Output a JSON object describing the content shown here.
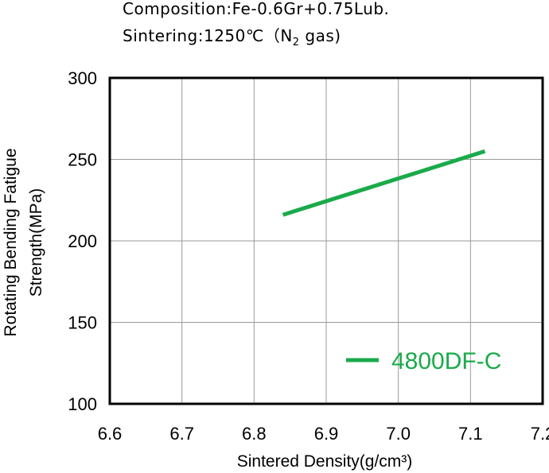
{
  "notes": {
    "composition": "Composition:Fe-0.6Gr+0.75Lub.",
    "sintering_prefix": "Sintering:1250℃（N",
    "sintering_sub": "2",
    "sintering_suffix": " gas)"
  },
  "chart_data": {
    "type": "line",
    "title": "",
    "xlabel": "Sintered Density(g/cm³)",
    "ylabel_lines": [
      "Rotating Bending Fatigue",
      "Strength(MPa)"
    ],
    "xlim": [
      6.6,
      7.2
    ],
    "ylim": [
      100,
      300
    ],
    "xticks": [
      6.6,
      6.7,
      6.8,
      6.9,
      7.0,
      7.1,
      7.2
    ],
    "xtick_labels": [
      "6.6",
      "6.7",
      "6.8",
      "6.9",
      "7.0",
      "7.1",
      "7.2"
    ],
    "yticks": [
      100,
      150,
      200,
      250,
      300
    ],
    "ytick_labels": [
      "100",
      "150",
      "200",
      "250",
      "300"
    ],
    "grid": true,
    "legend_position": "bottom-right",
    "series": [
      {
        "name": "4800DF-C",
        "color": "#1aaa4a",
        "x": [
          6.84,
          7.12
        ],
        "y": [
          216,
          255
        ]
      }
    ]
  }
}
